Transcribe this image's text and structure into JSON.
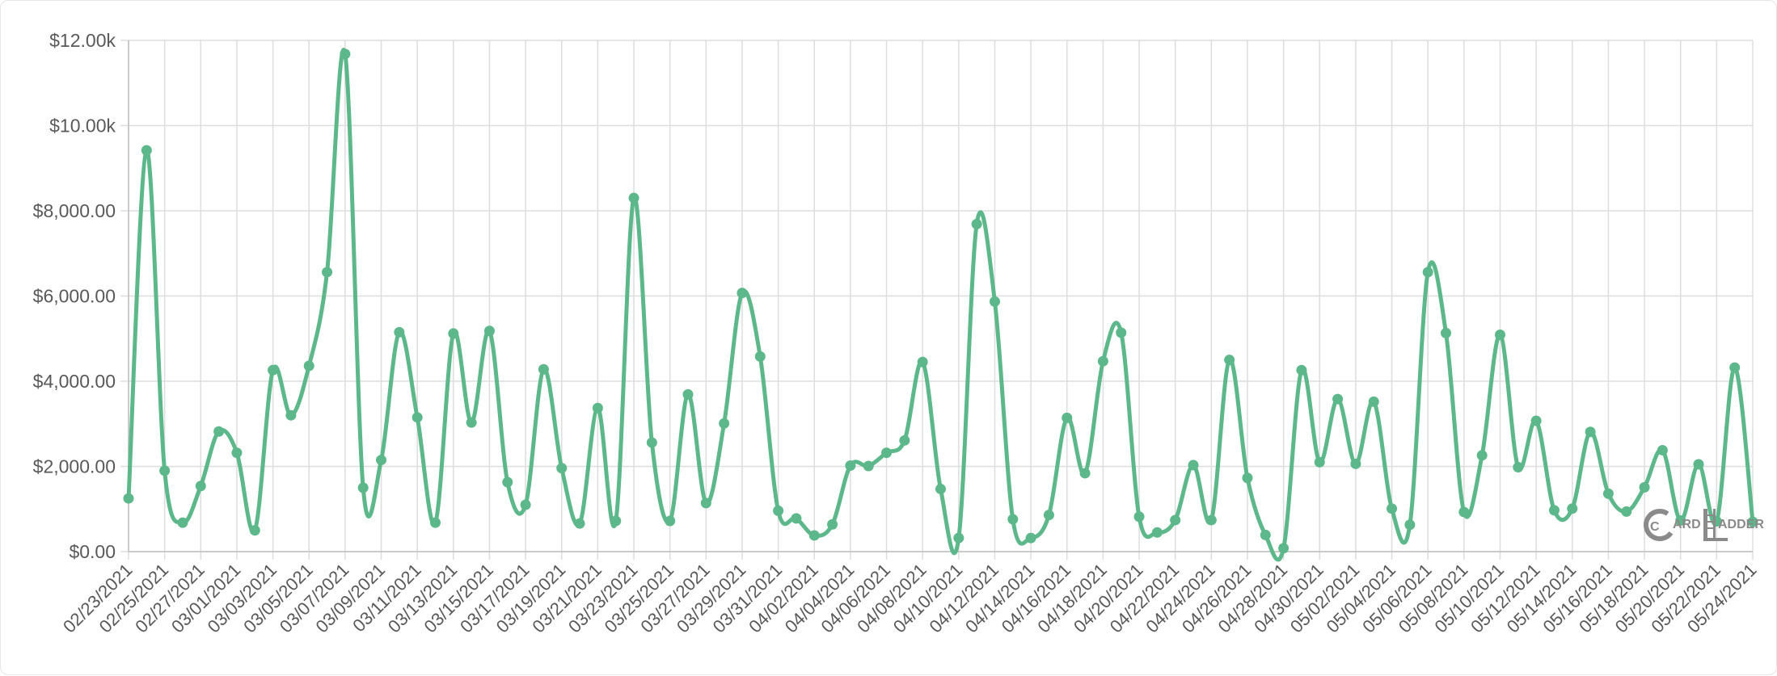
{
  "chart_data": {
    "type": "line",
    "title": "",
    "xlabel": "",
    "ylabel": "",
    "ylim": [
      0,
      12000
    ],
    "y_ticks": [
      0,
      2000,
      4000,
      6000,
      8000,
      10000,
      12000
    ],
    "y_tick_labels": [
      "$0.00",
      "$2,000.00",
      "$4,000.00",
      "$6,000.00",
      "$8,000.00",
      "$10.00k",
      "$12.00k"
    ],
    "x_tick_labels": [
      "02/23/2021",
      "02/25/2021",
      "02/27/2021",
      "03/01/2021",
      "03/03/2021",
      "03/05/2021",
      "03/07/2021",
      "03/09/2021",
      "03/11/2021",
      "03/13/2021",
      "03/15/2021",
      "03/17/2021",
      "03/19/2021",
      "03/21/2021",
      "03/23/2021",
      "03/25/2021",
      "03/27/2021",
      "03/29/2021",
      "03/31/2021",
      "04/02/2021",
      "04/04/2021",
      "04/06/2021",
      "04/08/2021",
      "04/10/2021",
      "04/12/2021",
      "04/14/2021",
      "04/16/2021",
      "04/18/2021",
      "04/20/2021",
      "04/22/2021",
      "04/24/2021",
      "04/26/2021",
      "04/28/2021",
      "04/30/2021",
      "05/02/2021",
      "05/04/2021",
      "05/06/2021",
      "05/08/2021",
      "05/10/2021",
      "05/12/2021",
      "05/14/2021",
      "05/16/2021",
      "05/18/2021",
      "05/20/2021",
      "05/22/2021",
      "05/24/2021"
    ],
    "grid": true,
    "line_color": "#5cb88a",
    "series": [
      {
        "x": [
          "02/23/2021",
          "02/24/2021",
          "02/25/2021",
          "02/26/2021",
          "02/27/2021",
          "02/28/2021",
          "03/01/2021",
          "03/02/2021",
          "03/03/2021",
          "03/04/2021",
          "03/05/2021",
          "03/06/2021",
          "03/07/2021",
          "03/08/2021",
          "03/09/2021",
          "03/10/2021",
          "03/11/2021",
          "03/12/2021",
          "03/13/2021",
          "03/14/2021",
          "03/15/2021",
          "03/16/2021",
          "03/17/2021",
          "03/18/2021",
          "03/19/2021",
          "03/20/2021",
          "03/21/2021",
          "03/22/2021",
          "03/23/2021",
          "03/24/2021",
          "03/25/2021",
          "03/26/2021",
          "03/27/2021",
          "03/28/2021",
          "03/29/2021",
          "03/30/2021",
          "03/31/2021",
          "04/01/2021",
          "04/02/2021",
          "04/03/2021",
          "04/04/2021",
          "04/05/2021",
          "04/06/2021",
          "04/07/2021",
          "04/08/2021",
          "04/09/2021",
          "04/10/2021",
          "04/11/2021",
          "04/12/2021",
          "04/13/2021",
          "04/14/2021",
          "04/15/2021",
          "04/16/2021",
          "04/17/2021",
          "04/18/2021",
          "04/19/2021",
          "04/20/2021",
          "04/21/2021",
          "04/22/2021",
          "04/23/2021",
          "04/24/2021",
          "04/25/2021",
          "04/26/2021",
          "04/27/2021",
          "04/28/2021",
          "04/29/2021",
          "04/30/2021",
          "05/01/2021",
          "05/02/2021",
          "05/03/2021",
          "05/04/2021",
          "05/05/2021",
          "05/06/2021",
          "05/07/2021",
          "05/08/2021",
          "05/09/2021",
          "05/10/2021",
          "05/11/2021",
          "05/12/2021",
          "05/13/2021",
          "05/14/2021",
          "05/15/2021",
          "05/16/2021",
          "05/17/2021",
          "05/18/2021",
          "05/19/2021",
          "05/20/2021",
          "05/21/2021",
          "05/22/2021",
          "05/23/2021",
          "05/24/2021"
        ],
        "values": [
          1250,
          9420,
          1900,
          680,
          1540,
          2820,
          2320,
          500,
          4260,
          3200,
          4360,
          6560,
          11680,
          1500,
          2150,
          5150,
          3150,
          680,
          5120,
          3030,
          5180,
          1630,
          1100,
          4280,
          1960,
          660,
          3370,
          720,
          8300,
          2560,
          720,
          3690,
          1140,
          3010,
          6070,
          4580,
          960,
          780,
          380,
          640,
          2020,
          2010,
          2320,
          2610,
          4450,
          1470,
          320,
          7690,
          5870,
          760,
          320,
          860,
          3140,
          1840,
          4470,
          5140,
          820,
          450,
          740,
          2030,
          740,
          4500,
          1730,
          390,
          80,
          4260,
          2100,
          3580,
          2060,
          3520,
          1010,
          630,
          6560,
          5130,
          930,
          2260,
          5090,
          1980,
          3070,
          970,
          1010,
          2810,
          1360,
          940,
          1510,
          2380,
          730,
          2050,
          710,
          4320,
          700
        ]
      }
    ]
  },
  "watermark": {
    "letter": "C",
    "text_part1": "ARD",
    "text_part2": "ADDER"
  }
}
